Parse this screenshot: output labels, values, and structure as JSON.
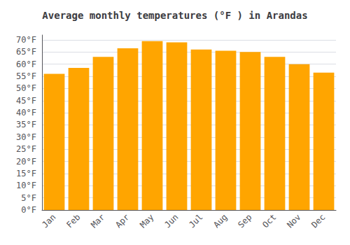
{
  "chart_data": {
    "type": "bar",
    "title": "Average monthly temperatures (°F ) in Arandas",
    "categories": [
      "Jan",
      "Feb",
      "Mar",
      "Apr",
      "May",
      "Jun",
      "Jul",
      "Aug",
      "Sep",
      "Oct",
      "Nov",
      "Dec"
    ],
    "values": [
      56,
      58.5,
      63,
      66.5,
      69.5,
      69,
      66,
      65.5,
      65,
      63,
      60,
      56.5
    ],
    "color": "#FFA500",
    "ylim": [
      0,
      72
    ],
    "yticks": [
      {
        "value": 0,
        "label": "0°F"
      },
      {
        "value": 5,
        "label": "5°F"
      },
      {
        "value": 10,
        "label": "10°F"
      },
      {
        "value": 15,
        "label": "15°F"
      },
      {
        "value": 20,
        "label": "20°F"
      },
      {
        "value": 25,
        "label": "25°F"
      },
      {
        "value": 30,
        "label": "30°F"
      },
      {
        "value": 35,
        "label": "35°F"
      },
      {
        "value": 40,
        "label": "40°F"
      },
      {
        "value": 45,
        "label": "45°F"
      },
      {
        "value": 50,
        "label": "50°F"
      },
      {
        "value": 55,
        "label": "55°F"
      },
      {
        "value": 60,
        "label": "60°F"
      },
      {
        "value": 65,
        "label": "65°F"
      },
      {
        "value": 70,
        "label": "70°F"
      }
    ],
    "grid": true
  }
}
